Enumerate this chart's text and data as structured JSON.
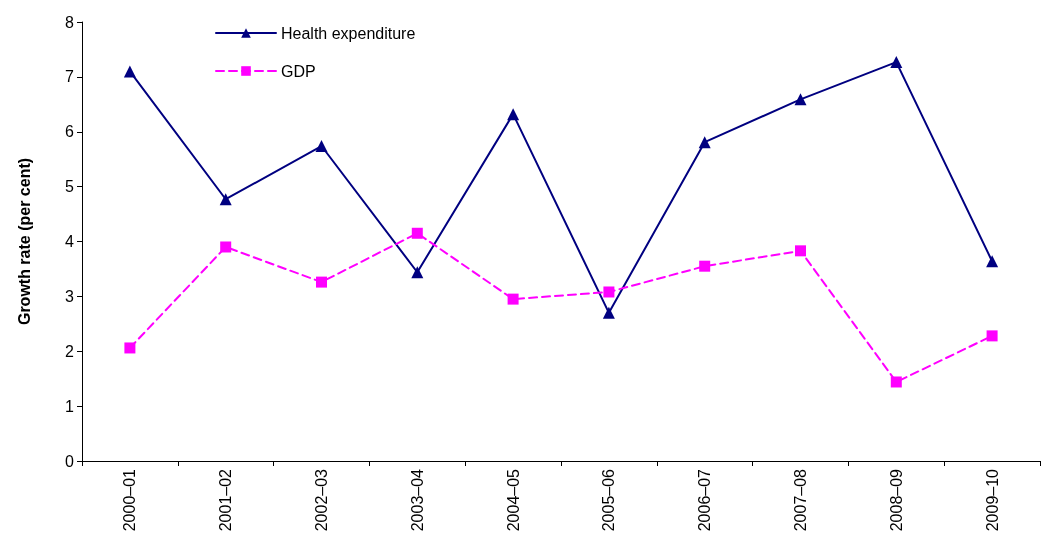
{
  "chart_data": {
    "type": "line",
    "ylabel": "Growth rate (per cent)",
    "categories": [
      "2000–01",
      "2001–02",
      "2002–03",
      "2003–04",
      "2004–05",
      "2005–06",
      "2006–07",
      "2007–08",
      "2008–09",
      "2009–10"
    ],
    "series": [
      {
        "name": "Health expenditure",
        "color": "#000080",
        "marker": "triangle",
        "line_style": "solid",
        "values": [
          7.1,
          4.77,
          5.74,
          3.44,
          6.32,
          2.7,
          5.81,
          6.59,
          7.27,
          3.64
        ]
      },
      {
        "name": "GDP",
        "color": "#ff00ff",
        "marker": "square",
        "line_style": "dashed",
        "values": [
          2.06,
          3.9,
          3.26,
          4.15,
          2.95,
          3.08,
          3.55,
          3.83,
          1.44,
          2.28
        ]
      }
    ],
    "ylim": [
      0,
      8
    ],
    "yticks": [
      0,
      1,
      2,
      3,
      4,
      5,
      6,
      7,
      8
    ],
    "grid": false,
    "legend": "top left"
  }
}
